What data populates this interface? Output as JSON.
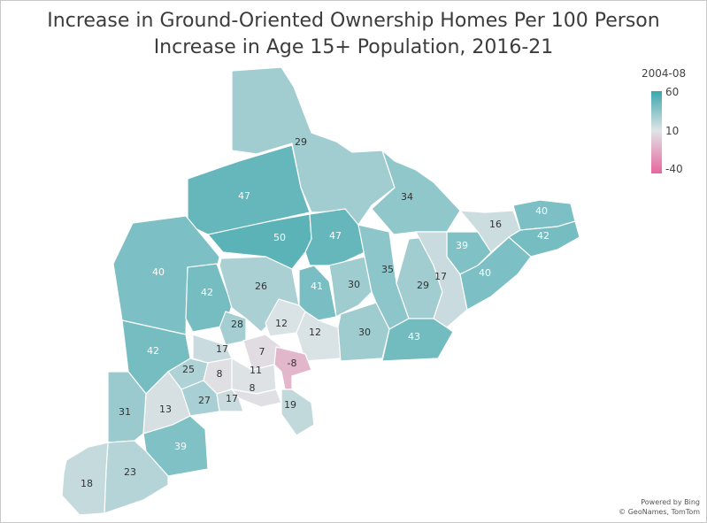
{
  "title": {
    "line1": "Increase in Ground-Oriented Ownership Homes Per 100 Person",
    "line2": "Increase in Age 15+ Population, 2016-21"
  },
  "legend": {
    "title": "2004-08",
    "max": "60",
    "mid": "10",
    "min": "-40",
    "colors": {
      "high": "#3aa7ad",
      "mid": "#e0e4e6",
      "low": "#e6669e"
    }
  },
  "credits": {
    "line1": "Powered by Bing",
    "line2": "© GeoNames, TomTom"
  },
  "regions": [
    {
      "id": "r29",
      "value": 29
    },
    {
      "id": "r47a",
      "value": 47
    },
    {
      "id": "r34",
      "value": 34
    },
    {
      "id": "r50",
      "value": 50
    },
    {
      "id": "r47b",
      "value": 47
    },
    {
      "id": "r16",
      "value": 16
    },
    {
      "id": "r40ne",
      "value": 40
    },
    {
      "id": "r42ne",
      "value": 42
    },
    {
      "id": "r39e",
      "value": 39
    },
    {
      "id": "r40w",
      "value": 40
    },
    {
      "id": "r42w",
      "value": 42
    },
    {
      "id": "r26",
      "value": 26
    },
    {
      "id": "r41",
      "value": 41
    },
    {
      "id": "r30a",
      "value": 30
    },
    {
      "id": "r35",
      "value": 35
    },
    {
      "id": "r29b",
      "value": 29
    },
    {
      "id": "r17e",
      "value": 17
    },
    {
      "id": "r40e",
      "value": 40
    },
    {
      "id": "r28",
      "value": 28
    },
    {
      "id": "r12a",
      "value": 12
    },
    {
      "id": "r12b",
      "value": 12
    },
    {
      "id": "r30b",
      "value": 30
    },
    {
      "id": "r43",
      "value": 43
    },
    {
      "id": "r42sw",
      "value": 42
    },
    {
      "id": "r17w",
      "value": 17
    },
    {
      "id": "r7",
      "value": 7
    },
    {
      "id": "r25",
      "value": 25
    },
    {
      "id": "r8a",
      "value": 8
    },
    {
      "id": "r11",
      "value": 11
    },
    {
      "id": "rneg8",
      "value": -8
    },
    {
      "id": "r8b",
      "value": 8
    },
    {
      "id": "r27",
      "value": 27
    },
    {
      "id": "r17s",
      "value": 17
    },
    {
      "id": "r19",
      "value": 19
    },
    {
      "id": "r13",
      "value": 13
    },
    {
      "id": "r31",
      "value": 31
    },
    {
      "id": "r39s",
      "value": 39
    },
    {
      "id": "r23",
      "value": 23
    },
    {
      "id": "r18",
      "value": 18
    }
  ]
}
